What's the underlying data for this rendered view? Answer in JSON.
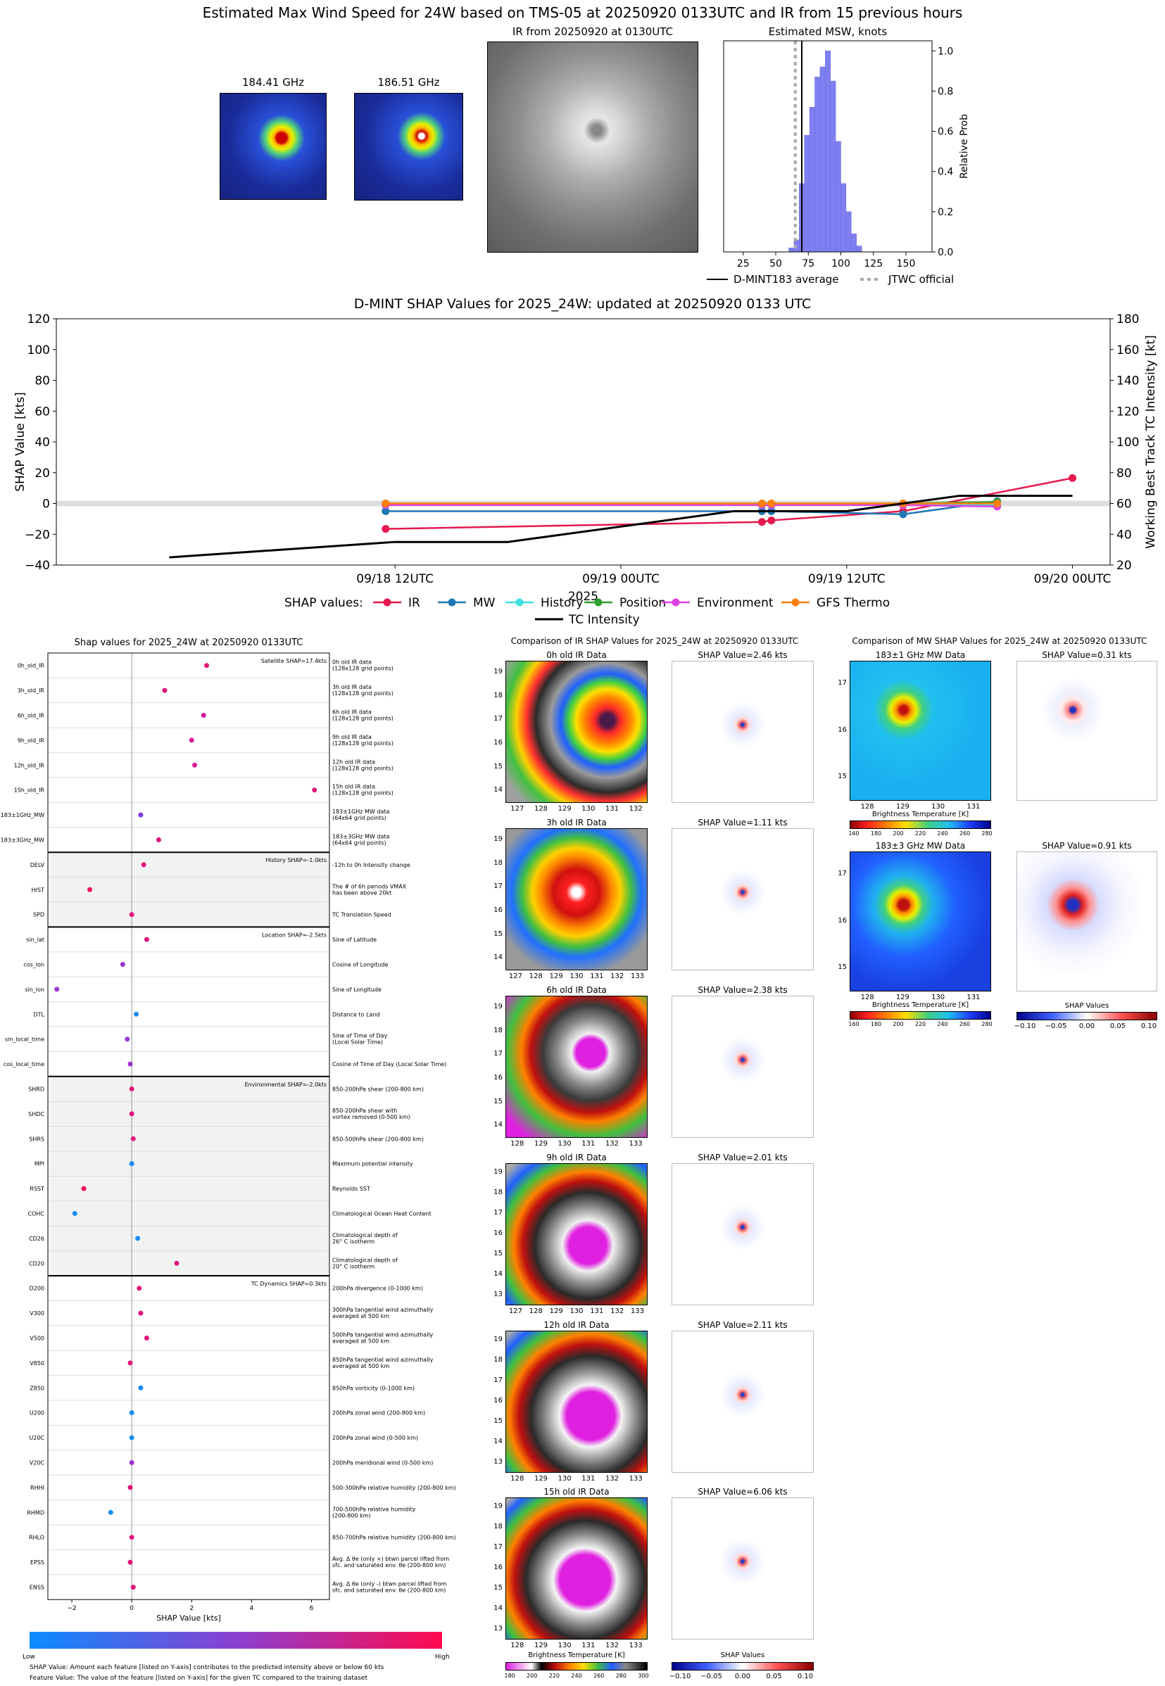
{
  "top": {
    "title": "Estimated Max Wind Speed for 24W based on TMS-05 at 20250920 0133UTC and IR from 15 previous hours",
    "mw1_label": "184.41 GHz",
    "mw2_label": "186.51 GHz",
    "ir_label": "IR from 20250920 at 0130UTC",
    "hist_title": "Estimated MSW, knots",
    "hist_ylabel": "Relative Prob",
    "hist_xticks": [
      "25",
      "50",
      "75",
      "100",
      "125",
      "150"
    ],
    "hist_yticks": [
      "0.0",
      "0.2",
      "0.4",
      "0.6",
      "0.8",
      "1.0"
    ],
    "legend_avg": "D-MINT183 average",
    "legend_jtwc": "JTWC official"
  },
  "timeseries": {
    "title": "D-MINT SHAP Values for 2025_24W: updated at 20250920 0133 UTC",
    "ylabel_left": "SHAP Value [kts]",
    "ylabel_right": "Working Best Track TC Intensity [kt]",
    "xlabel": "2025",
    "yticks_left": [
      "120",
      "100",
      "80",
      "60",
      "40",
      "20",
      "0",
      "−20",
      "−40"
    ],
    "yticks_right": [
      "180",
      "160",
      "140",
      "120",
      "100",
      "80",
      "60",
      "40",
      "20"
    ],
    "xticks": [
      "09/18 12UTC",
      "09/19 00UTC",
      "09/19 12UTC",
      "09/20 00UTC"
    ],
    "legend_title": "SHAP values:",
    "legend_items": [
      "IR",
      "MW",
      "History",
      "Position",
      "Environment",
      "GFS Thermo",
      "TC Intensity"
    ]
  },
  "shap_panel": {
    "title": "Shap values for 2025_24W at 20250920 0133UTC",
    "xlabel": "SHAP Value [kts]",
    "xticks": [
      "−2",
      "0",
      "2",
      "4",
      "6"
    ],
    "sections": [
      {
        "label": "Satellite SHAP=17.4kts",
        "shaded": false
      },
      {
        "label": "History SHAP=-1.0kts",
        "shaded": true
      },
      {
        "label": "Location SHAP=-2.5kts",
        "shaded": false
      },
      {
        "label": "Environmental SHAP=-2.0kts",
        "shaded": true
      },
      {
        "label": "TC Dynamics SHAP=0.3kts",
        "shaded": false
      }
    ],
    "colorbar_low": "Low",
    "colorbar_high": "High",
    "footnote1": "SHAP Value: Amount each feature [listed on Y-axis] contributes to the predicted intensity above or below 60 kts",
    "footnote2": "Feature Value: The value of the feature [listed on Y-axis] for the given TC compared to the training dataset"
  },
  "ir_compare": {
    "title": "Comparison of IR SHAP Values for 2025_24W at 20250920 0133UTC",
    "panels": [
      {
        "data_title": "0h old IR Data",
        "shap_title": "SHAP Value=2.46 kts"
      },
      {
        "data_title": "3h old IR Data",
        "shap_title": "SHAP Value=1.11 kts"
      },
      {
        "data_title": "6h old IR Data",
        "shap_title": "SHAP Value=2.38 kts"
      },
      {
        "data_title": "9h old IR Data",
        "shap_title": "SHAP Value=2.01 kts"
      },
      {
        "data_title": "12h old IR Data",
        "shap_title": "SHAP Value=2.11 kts"
      },
      {
        "data_title": "15h old IR Data",
        "shap_title": "SHAP Value=6.06 kts"
      }
    ],
    "cb_label": "Brightness Temperature [K]",
    "cb_ticks": [
      "180",
      "200",
      "220",
      "240",
      "260",
      "280",
      "300"
    ],
    "shap_cb_label": "SHAP Values",
    "shap_cb_ticks": [
      "−0.10",
      "−0.05",
      "0.00",
      "0.05",
      "0.10"
    ]
  },
  "mw_compare": {
    "title": "Comparison of MW SHAP Values for 2025_24W at 20250920 0133UTC",
    "panels": [
      {
        "data_title": "183±1 GHz MW Data",
        "shap_title": "SHAP Value=0.31 kts"
      },
      {
        "data_title": "183±3 GHz MW Data",
        "shap_title": "SHAP Value=0.91 kts"
      }
    ],
    "cb_label": "Brightness Temperature [K]",
    "cb_ticks": [
      "160",
      "180",
      "200",
      "220",
      "240",
      "260",
      "280"
    ],
    "shap_cb_label": "SHAP Values",
    "shap_cb_ticks": [
      "−0.10",
      "−0.05",
      "0.00",
      "0.05",
      "0.10"
    ]
  },
  "chart_data": [
    {
      "type": "bar",
      "title": "Estimated MSW, knots",
      "xlabel": "",
      "ylabel": "Relative Prob",
      "xlim": [
        10,
        170
      ],
      "ylim": [
        0,
        1.05
      ],
      "bin_width": 4,
      "bins": [
        {
          "x": 62,
          "y": 0.02
        },
        {
          "x": 66,
          "y": 0.06
        },
        {
          "x": 70,
          "y": 0.34
        },
        {
          "x": 74,
          "y": 0.58
        },
        {
          "x": 78,
          "y": 0.72
        },
        {
          "x": 82,
          "y": 0.87
        },
        {
          "x": 86,
          "y": 0.92
        },
        {
          "x": 90,
          "y": 1.0
        },
        {
          "x": 94,
          "y": 0.85
        },
        {
          "x": 98,
          "y": 0.55
        },
        {
          "x": 102,
          "y": 0.34
        },
        {
          "x": 106,
          "y": 0.2
        },
        {
          "x": 110,
          "y": 0.09
        },
        {
          "x": 114,
          "y": 0.03
        }
      ],
      "d_mint183_average": 70,
      "jtwc_official": 65
    },
    {
      "type": "line",
      "title": "D-MINT SHAP Values for 2025_24W: updated at 20250920 0133 UTC",
      "xlabel": "2025",
      "ylabel": "SHAP Value [kts]",
      "ylim": [
        -40,
        120
      ],
      "ylim_right": [
        20,
        180
      ],
      "x_unit": "hours relative to 09/19 00UTC",
      "series": [
        {
          "name": "IR",
          "color": "#e5194f",
          "x": [
            -12.5,
            7.5,
            8,
            15,
            24
          ],
          "values": [
            -16.5,
            -12,
            -11,
            -5,
            16.5
          ]
        },
        {
          "name": "MW",
          "color": "#1f77b4",
          "x": [
            -12.5,
            7.5,
            8,
            15,
            20
          ],
          "values": [
            -5,
            -5,
            -5,
            -7,
            1.5
          ]
        },
        {
          "name": "History",
          "color": "#40e0e0",
          "x": [
            -12.5,
            7.5,
            8,
            15,
            20
          ],
          "values": [
            -1,
            -1,
            -1,
            -1,
            -1
          ]
        },
        {
          "name": "Position",
          "color": "#2ca02c",
          "x": [
            -12.5,
            7.5,
            8,
            15,
            20
          ],
          "values": [
            0,
            0,
            0,
            0,
            1
          ]
        },
        {
          "name": "Environment",
          "color": "#e040e0",
          "x": [
            -12.5,
            7.5,
            8,
            15,
            20
          ],
          "values": [
            -1,
            -1,
            -1,
            -1,
            -2
          ]
        },
        {
          "name": "GFS Thermo",
          "color": "#ff7f0e",
          "x": [
            -12.5,
            7.5,
            8,
            15,
            20
          ],
          "values": [
            0,
            0,
            0,
            0,
            0
          ]
        },
        {
          "name": "TC Intensity",
          "color": "#000000",
          "axis": "right",
          "x": [
            -24,
            -18,
            -12,
            -6,
            0,
            6,
            12,
            18,
            24
          ],
          "values": [
            25,
            30,
            35,
            35,
            45,
            55,
            55,
            65,
            65
          ]
        }
      ]
    },
    {
      "type": "scatter",
      "title": "Shap values for 2025_24W at 20250920 0133UTC",
      "xlabel": "SHAP Value [kts]",
      "xlim": [
        -2.8,
        6.6
      ],
      "rows": [
        {
          "feature": "0h_old_IR",
          "desc": [
            "0h old IR data",
            "(128x128 grid points)"
          ],
          "value": 2.5,
          "color": "#e0157a"
        },
        {
          "feature": "3h_old_IR",
          "desc": [
            "3h old IR data",
            "(128x128 grid points)"
          ],
          "value": 1.1,
          "color": "#e0157a"
        },
        {
          "feature": "6h_old_IR",
          "desc": [
            "6h old IR data",
            "(128x128 grid points)"
          ],
          "value": 2.4,
          "color": "#d8189a"
        },
        {
          "feature": "9h_old_IR",
          "desc": [
            "9h old IR data",
            "(128x128 grid points)"
          ],
          "value": 2.0,
          "color": "#d8189a"
        },
        {
          "feature": "12h_old_IR",
          "desc": [
            "12h old IR data",
            "(128x128 grid points)"
          ],
          "value": 2.1,
          "color": "#d8189a"
        },
        {
          "feature": "15h_old_IR",
          "desc": [
            "15h old IR data",
            "(128x128 grid points)"
          ],
          "value": 6.1,
          "color": "#e0157a"
        },
        {
          "feature": "183±1GHz_MW",
          "desc": [
            "183±1GHz MW data",
            "(64x64 grid points)"
          ],
          "value": 0.3,
          "color": "#7a3ee0"
        },
        {
          "feature": "183±3GHz_MW",
          "desc": [
            "183±3GHz MW data",
            "(64x64 grid points)"
          ],
          "value": 0.9,
          "color": "#e0157a"
        },
        {
          "feature": "DELV",
          "desc": [
            "-12h to 0h Intensity change"
          ],
          "value": 0.4,
          "color": "#e0157a"
        },
        {
          "feature": "HIST",
          "desc": [
            "The # of 6h periods VMAX",
            "has been above 20kt"
          ],
          "value": -1.4,
          "color": "#f0105a"
        },
        {
          "feature": "SPD",
          "desc": [
            "TC Translation Speed"
          ],
          "value": 0.0,
          "color": "#e0157a"
        },
        {
          "feature": "sin_lat",
          "desc": [
            "Sine of Latitude"
          ],
          "value": 0.5,
          "color": "#e0157a"
        },
        {
          "feature": "cos_lon",
          "desc": [
            "Cosine of Longitude"
          ],
          "value": -0.3,
          "color": "#9a35d0"
        },
        {
          "feature": "sin_lon",
          "desc": [
            "Sine of Longitude"
          ],
          "value": -2.5,
          "color": "#9a35d0"
        },
        {
          "feature": "DTL",
          "desc": [
            "Distance to Land"
          ],
          "value": 0.15,
          "color": "#1a8cf0"
        },
        {
          "feature": "sin_local_time",
          "desc": [
            "Sine of Time of Day",
            "(Local Solar Time)"
          ],
          "value": -0.15,
          "color": "#9a35d0"
        },
        {
          "feature": "cos_local_time",
          "desc": [
            "Cosine of Time of Day (Local Solar Time)"
          ],
          "value": -0.05,
          "color": "#9a35d0"
        },
        {
          "feature": "SHRD",
          "desc": [
            "850-200hPa shear (200-800 km)"
          ],
          "value": 0.0,
          "color": "#e0157a"
        },
        {
          "feature": "SHDC",
          "desc": [
            "850-200hPa shear with",
            "vortex removed (0-500 km)"
          ],
          "value": 0.0,
          "color": "#e0157a"
        },
        {
          "feature": "SHRS",
          "desc": [
            "850-500hPa shear (200-800 km)"
          ],
          "value": 0.05,
          "color": "#e0157a"
        },
        {
          "feature": "MPI",
          "desc": [
            "Maximum potential intensity"
          ],
          "value": 0.0,
          "color": "#1a8cf0"
        },
        {
          "feature": "RSST",
          "desc": [
            "Reynolds SST"
          ],
          "value": -1.6,
          "color": "#f0105a"
        },
        {
          "feature": "COHC",
          "desc": [
            "Climatological Ocean Heat Content"
          ],
          "value": -1.9,
          "color": "#1a8cf0"
        },
        {
          "feature": "CD26",
          "desc": [
            "Climatological depth of",
            "26° C isotherm"
          ],
          "value": 0.2,
          "color": "#1a8cf0"
        },
        {
          "feature": "CD20",
          "desc": [
            "Climatological depth of",
            "20° C isotherm"
          ],
          "value": 1.5,
          "color": "#e0157a"
        },
        {
          "feature": "D200",
          "desc": [
            "200hPa divergence (0-1000 km)"
          ],
          "value": 0.25,
          "color": "#e0157a"
        },
        {
          "feature": "V300",
          "desc": [
            "300hPa tangential wind azimuthally",
            "averaged at 500 km"
          ],
          "value": 0.3,
          "color": "#e0157a"
        },
        {
          "feature": "V500",
          "desc": [
            "500hPa tangential wind azimuthally",
            "averaged at 500 km"
          ],
          "value": 0.5,
          "color": "#e0157a"
        },
        {
          "feature": "V850",
          "desc": [
            "850hPa tangential wind azimuthally",
            "averaged at 500 km"
          ],
          "value": -0.05,
          "color": "#e0157a"
        },
        {
          "feature": "Z850",
          "desc": [
            "850hPa vorticity (0-1000 km)"
          ],
          "value": 0.3,
          "color": "#1a8cf0"
        },
        {
          "feature": "U200",
          "desc": [
            "200hPa zonal wind (200-800 km)"
          ],
          "value": 0.0,
          "color": "#1a8cf0"
        },
        {
          "feature": "U20C",
          "desc": [
            "200hPa zonal wind (0-500 km)"
          ],
          "value": 0.0,
          "color": "#1a8cf0"
        },
        {
          "feature": "V20C",
          "desc": [
            "200hPa meridional wind (0-500 km)"
          ],
          "value": 0.0,
          "color": "#9a35d0"
        },
        {
          "feature": "RHHI",
          "desc": [
            "500-300hPa relative humidity (200-800 km)"
          ],
          "value": -0.05,
          "color": "#e0157a"
        },
        {
          "feature": "RHMD",
          "desc": [
            "700-500hPa relative humidity",
            "(200-800 km)"
          ],
          "value": -0.7,
          "color": "#1a8cf0"
        },
        {
          "feature": "RHLO",
          "desc": [
            "850-700hPa relative humidity (200-800 km)"
          ],
          "value": 0.0,
          "color": "#e0157a"
        },
        {
          "feature": "EPSS",
          "desc": [
            "Avg. Δ θe (only +) btwn parcel lifted from",
            "sfc. and saturated env. θe (200-800 km)"
          ],
          "value": -0.05,
          "color": "#e0157a"
        },
        {
          "feature": "ENSS",
          "desc": [
            "Avg. Δ θe (only -) btwn parcel lifted from",
            "sfc. and saturated env. θe (200-800 km)"
          ],
          "value": 0.05,
          "color": "#e0157a"
        }
      ]
    }
  ]
}
